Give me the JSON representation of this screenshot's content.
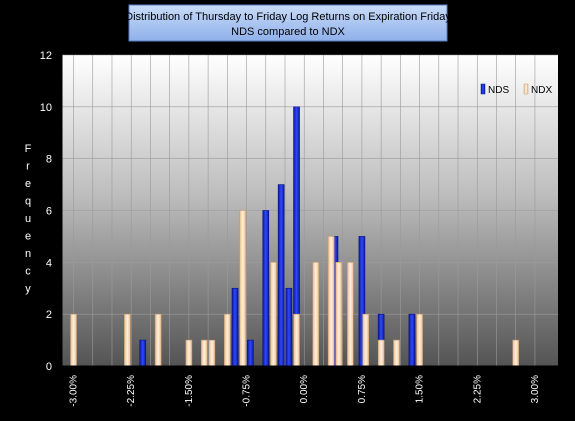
{
  "chart_data": {
    "type": "bar",
    "title": "Distribution of Thursday to Friday Log Returns on Expiration Friday",
    "subtitle": "NDS compared to NDX",
    "xlabel": "",
    "ylabel": "Frequency",
    "ylim": [
      0,
      12
    ],
    "yticks": [
      "0",
      "2",
      "4",
      "6",
      "8",
      "10",
      "12"
    ],
    "xtick_labels": [
      "-3.00%",
      "-2.25%",
      "-1.50%",
      "-0.75%",
      "0.00%",
      "0.75%",
      "1.50%",
      "2.25%",
      "3.00%"
    ],
    "grid": true,
    "legend_position": "top-right",
    "colors": {
      "NDS": "#1a2fd6",
      "NDX": "#f7d3aa"
    },
    "bins": [
      "-3.00%",
      "-2.75%",
      "-2.50%",
      "-2.25%",
      "-2.00%",
      "-1.75%",
      "-1.50%",
      "-1.25%",
      "-1.00%",
      "-0.75%",
      "-0.50%",
      "-0.25%",
      "0.00%",
      "0.25%",
      "0.50%",
      "0.75%",
      "1.00%",
      "1.25%",
      "1.50%",
      "1.75%",
      "2.00%",
      "2.25%",
      "2.50%",
      "2.75%",
      "3.00%"
    ],
    "series": [
      {
        "name": "NDS",
        "values": [
          {
            "x": -2.1,
            "y": 1
          },
          {
            "x": -1.2,
            "y": 1
          },
          {
            "x": -0.9,
            "y": 3
          },
          {
            "x": -0.7,
            "y": 1
          },
          {
            "x": -0.5,
            "y": 6
          },
          {
            "x": -0.3,
            "y": 7
          },
          {
            "x": -0.2,
            "y": 3
          },
          {
            "x": -0.1,
            "y": 10
          },
          {
            "x": 0.4,
            "y": 5
          },
          {
            "x": 0.6,
            "y": 2
          },
          {
            "x": 0.75,
            "y": 5
          },
          {
            "x": 1.0,
            "y": 2
          },
          {
            "x": 1.4,
            "y": 2
          }
        ]
      },
      {
        "name": "NDX",
        "values": [
          {
            "x": -3.0,
            "y": 2
          },
          {
            "x": -2.3,
            "y": 2
          },
          {
            "x": -1.9,
            "y": 2
          },
          {
            "x": -1.5,
            "y": 1
          },
          {
            "x": -1.3,
            "y": 1
          },
          {
            "x": -1.2,
            "y": 1
          },
          {
            "x": -1.0,
            "y": 2
          },
          {
            "x": -0.8,
            "y": 6
          },
          {
            "x": -0.4,
            "y": 4
          },
          {
            "x": -0.1,
            "y": 2
          },
          {
            "x": 0.15,
            "y": 4
          },
          {
            "x": 0.35,
            "y": 5
          },
          {
            "x": 0.45,
            "y": 4
          },
          {
            "x": 0.6,
            "y": 4
          },
          {
            "x": 0.8,
            "y": 2
          },
          {
            "x": 1.0,
            "y": 1
          },
          {
            "x": 1.2,
            "y": 1
          },
          {
            "x": 1.5,
            "y": 2
          },
          {
            "x": 2.75,
            "y": 1
          }
        ]
      }
    ]
  }
}
